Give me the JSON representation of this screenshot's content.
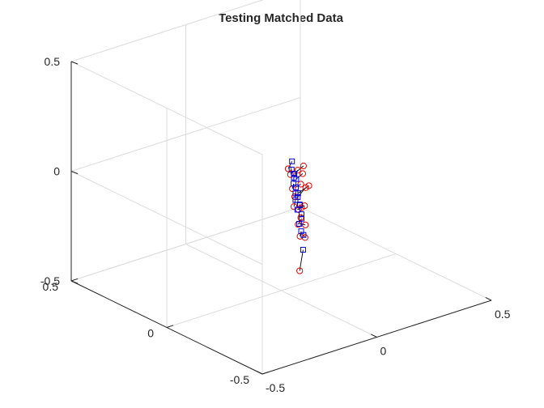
{
  "chart_data": {
    "type": "scatter",
    "title": "Testing Matched Data",
    "xlabel": "",
    "ylabel": "",
    "zlabel": "",
    "xlim": [
      -0.5,
      0.5
    ],
    "ylim": [
      -0.5,
      0.5
    ],
    "zlim": [
      -0.5,
      0.5
    ],
    "x_ticks": [
      -0.5,
      0,
      0.5
    ],
    "y_ticks": [
      -0.5,
      0,
      0.5
    ],
    "z_ticks": [
      -0.5,
      0,
      0.5
    ],
    "x_tick_labels": [
      "-0.5",
      "0",
      "0.5"
    ],
    "y_tick_labels": [
      "-0.5",
      "0",
      "0.5"
    ],
    "z_tick_labels": [
      "-0.5",
      "0",
      "0.5"
    ],
    "grid": true,
    "colors": {
      "series_a": "#0000d0",
      "series_b": "#e00000",
      "lines": "#000000"
    },
    "series": [
      {
        "marker": "square",
        "points": [
          [
            -0.02,
            -0.08,
            0.13
          ],
          [
            -0.03,
            -0.09,
            0.1
          ],
          [
            -0.02,
            -0.09,
            0.06
          ],
          [
            -0.01,
            -0.08,
            0.07
          ],
          [
            -0.03,
            -0.1,
            0.04
          ],
          [
            -0.02,
            -0.1,
            0.02
          ],
          [
            -0.03,
            -0.11,
            0.0
          ],
          [
            -0.01,
            -0.09,
            0.05
          ],
          [
            -0.02,
            -0.11,
            -0.02
          ],
          [
            -0.03,
            -0.11,
            -0.03
          ],
          [
            -0.01,
            -0.1,
            -0.01
          ],
          [
            -0.02,
            -0.12,
            -0.05
          ],
          [
            -0.03,
            -0.12,
            -0.07
          ],
          [
            -0.02,
            -0.13,
            -0.09
          ],
          [
            -0.01,
            -0.11,
            -0.06
          ],
          [
            -0.02,
            -0.13,
            -0.11
          ],
          [
            -0.03,
            -0.13,
            -0.13
          ],
          [
            -0.03,
            -0.14,
            -0.16
          ],
          [
            -0.02,
            -0.14,
            -0.18
          ],
          [
            -0.03,
            -0.15,
            -0.24
          ]
        ]
      },
      {
        "marker": "circle",
        "points": [
          [
            -0.07,
            -0.12,
            0.13
          ],
          [
            -0.06,
            -0.12,
            0.1
          ],
          [
            0.03,
            -0.05,
            0.06
          ],
          [
            0.08,
            -0.02,
            0.05
          ],
          [
            -0.06,
            -0.13,
            0.04
          ],
          [
            0.01,
            -0.09,
            0.02
          ],
          [
            -0.05,
            -0.13,
            0.0
          ],
          [
            0.06,
            -0.04,
            0.03
          ],
          [
            0.04,
            -0.08,
            -0.01
          ],
          [
            -0.07,
            -0.15,
            -0.03
          ],
          [
            0.07,
            -0.06,
            -0.02
          ],
          [
            -0.05,
            -0.15,
            -0.05
          ],
          [
            0.01,
            -0.11,
            -0.07
          ],
          [
            -0.04,
            -0.15,
            -0.09
          ],
          [
            -0.02,
            -0.13,
            -0.06
          ],
          [
            -0.06,
            -0.16,
            -0.11
          ],
          [
            -0.02,
            -0.15,
            -0.13
          ],
          [
            -0.06,
            -0.17,
            -0.16
          ],
          [
            -0.03,
            -0.16,
            -0.18
          ],
          [
            -0.07,
            -0.18,
            -0.31
          ]
        ]
      }
    ]
  }
}
